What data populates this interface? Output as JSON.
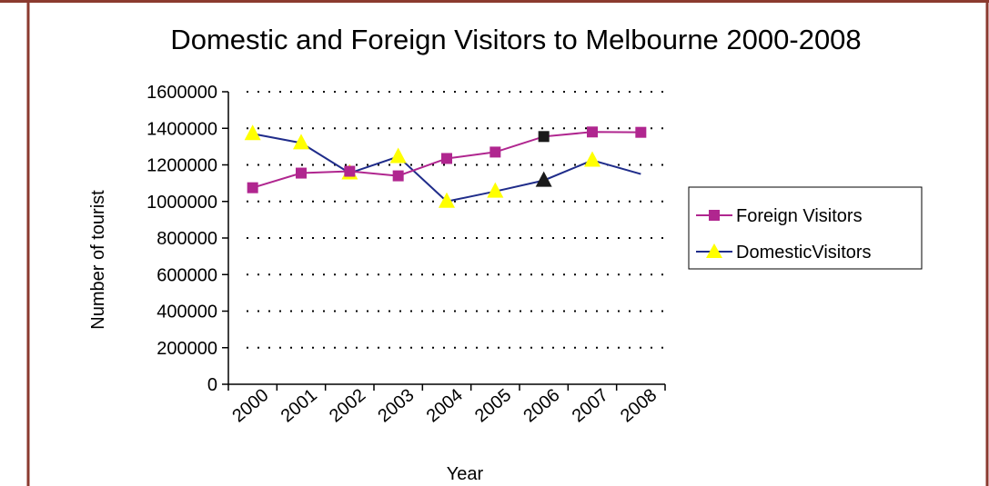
{
  "chart_data": {
    "type": "line",
    "title": "Domestic and Foreign Visitors to Melbourne 2000-2008",
    "xlabel": "Year",
    "ylabel": "Number of tourist",
    "categories": [
      "2000",
      "2001",
      "2002",
      "2003",
      "2004",
      "2005",
      "2006",
      "2007",
      "2008"
    ],
    "ylim": [
      0,
      1600000
    ],
    "yticks": [
      0,
      200000,
      400000,
      600000,
      800000,
      1000000,
      1200000,
      1400000,
      1600000
    ],
    "ytick_labels": [
      "0",
      "200000",
      "400000",
      "600000",
      "800000",
      "1000000",
      "1200000",
      "1400000",
      "1600000"
    ],
    "grid": "horizontal dotted",
    "legend_position": "right",
    "series": [
      {
        "name": "Foreign Visitors",
        "color": "#b0268f",
        "marker": "square",
        "values": [
          1075000,
          1155000,
          1165000,
          1140000,
          1235000,
          1270000,
          1355000,
          1380000,
          1378000
        ]
      },
      {
        "name": "DomesticVisitors",
        "color": "#1f2c8a",
        "marker": "triangle",
        "marker_color": "#ffff00",
        "values": [
          1370000,
          1320000,
          1155000,
          1245000,
          1000000,
          1055000,
          1115000,
          1225000,
          1150000
        ]
      }
    ]
  },
  "colors": {
    "frame_border": "#8b3a2f",
    "axis": "#000000"
  }
}
